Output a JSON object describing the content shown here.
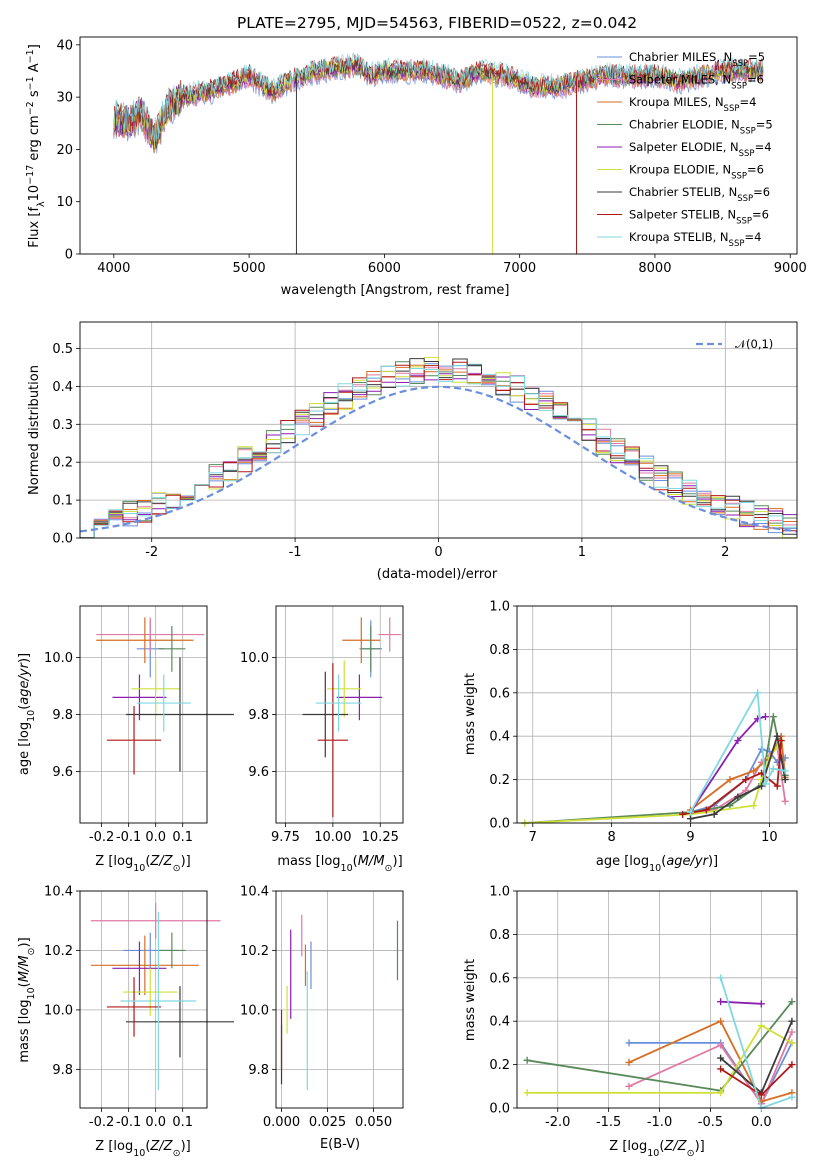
{
  "figure": {
    "title": "PLATE=2795, MJD=54563, FIBERID=0522, z=0.042"
  },
  "series": [
    {
      "key": "chab_miles",
      "label": "Chabrier MILES, N",
      "sub": "SSP",
      "suffix": "=5",
      "color": "#6a8fdc"
    },
    {
      "key": "salp_miles",
      "label": "Salpeter MILES, N",
      "sub": "SSP",
      "suffix": "=6",
      "color": "#e07aa4"
    },
    {
      "key": "krou_miles",
      "label": "Kroupa MILES, N",
      "sub": "SSP",
      "suffix": "=4",
      "color": "#d66e25"
    },
    {
      "key": "chab_elodie",
      "label": "Chabrier ELODIE, N",
      "sub": "SSP",
      "suffix": "=5",
      "color": "#5a8a5a"
    },
    {
      "key": "salp_elodie",
      "label": "Salpeter ELODIE, N",
      "sub": "SSP",
      "suffix": "=4",
      "color": "#8a1fb0"
    },
    {
      "key": "krou_elodie",
      "label": "Kroupa ELODIE, N",
      "sub": "SSP",
      "suffix": "=6",
      "color": "#cfe03a"
    },
    {
      "key": "chab_stelib",
      "label": "Chabrier STELIB, N",
      "sub": "SSP",
      "suffix": "=6",
      "color": "#3a3a3a"
    },
    {
      "key": "salp_stelib",
      "label": "Salpeter STELIB, N",
      "sub": "SSP",
      "suffix": "=6",
      "color": "#b01818"
    },
    {
      "key": "krou_stelib",
      "label": "Kroupa STELIB, N",
      "sub": "SSP",
      "suffix": "=4",
      "color": "#80d8e0"
    }
  ],
  "chart_data": [
    {
      "id": "spectrum",
      "type": "line",
      "xlabel": "wavelength [Angstrom, rest frame]",
      "ylabel": "Flux [f_λ10^−17 erg cm^−2 s^−1 A^−1]",
      "xlim": [
        3750,
        9050
      ],
      "ylim": [
        0,
        41.5
      ],
      "xticks": [
        4000,
        5000,
        6000,
        7000,
        8000,
        9000
      ],
      "yticks": [
        0,
        10,
        20,
        30,
        40
      ],
      "continuum": [
        [
          4000,
          26
        ],
        [
          4100,
          25
        ],
        [
          4200,
          27
        ],
        [
          4300,
          22
        ],
        [
          4400,
          28
        ],
        [
          4500,
          30
        ],
        [
          4700,
          31
        ],
        [
          4900,
          33
        ],
        [
          5000,
          34
        ],
        [
          5170,
          31
        ],
        [
          5300,
          33
        ],
        [
          5500,
          35
        ],
        [
          5800,
          36
        ],
        [
          5900,
          34
        ],
        [
          6000,
          35
        ],
        [
          6300,
          35
        ],
        [
          6563,
          33
        ],
        [
          6700,
          35
        ],
        [
          6900,
          34
        ],
        [
          7100,
          32
        ],
        [
          7300,
          32
        ],
        [
          7600,
          34
        ],
        [
          8000,
          34
        ],
        [
          8200,
          33
        ],
        [
          8500,
          35
        ],
        [
          8800,
          35
        ]
      ],
      "spikes": [
        {
          "series": "chab_stelib",
          "x": 5350,
          "y": 0
        },
        {
          "series": "krou_elodie",
          "x": 6800,
          "y": 0
        },
        {
          "series": "salp_stelib",
          "x": 7420,
          "y": 0
        }
      ],
      "legend": "top-right",
      "grid": false
    },
    {
      "id": "residuals",
      "type": "histogram",
      "xlabel": "(data-model)/error",
      "ylabel": "Normed distribution",
      "xlim": [
        -2.5,
        2.5
      ],
      "ylim": [
        0,
        0.57
      ],
      "xticks": [
        -2,
        -1,
        0,
        1,
        2
      ],
      "yticks": [
        0.0,
        0.1,
        0.2,
        0.3,
        0.4,
        0.5
      ],
      "bin_width": 0.1,
      "reference_label": "𝒩(0,1)",
      "reference_color": "#6a8fdc",
      "legend": "top-right",
      "grid": true
    },
    {
      "id": "age_vs_Z",
      "type": "errorbar",
      "xlabel": "Z [log10(Z/Z⊙)]",
      "ylabel": "age  [log10(age/yr)]",
      "xlim": [
        -0.28,
        0.19
      ],
      "ylim": [
        9.42,
        10.18
      ],
      "xticks": [
        -0.2,
        -0.1,
        0.0,
        0.1
      ],
      "yticks": [
        9.6,
        9.8,
        10.0
      ],
      "points": [
        {
          "series": "chab_miles",
          "x": -0.02,
          "y": 10.03,
          "xerr": 0.05,
          "yerr": 0.1
        },
        {
          "series": "salp_miles",
          "x": -0.02,
          "y": 10.08,
          "xerr": 0.2,
          "yerr": 0.06
        },
        {
          "series": "krou_miles",
          "x": -0.04,
          "y": 10.06,
          "xerr": 0.18,
          "yerr": 0.08
        },
        {
          "series": "chab_elodie",
          "x": 0.06,
          "y": 10.03,
          "xerr": 0.05,
          "yerr": 0.08
        },
        {
          "series": "salp_elodie",
          "x": -0.06,
          "y": 9.86,
          "xerr": 0.1,
          "yerr": 0.08
        },
        {
          "series": "krou_elodie",
          "x": 0.0,
          "y": 9.89,
          "xerr": 0.09,
          "yerr": 0.1
        },
        {
          "series": "chab_stelib",
          "x": 0.09,
          "y": 9.8,
          "xerr": 0.2,
          "yerr": 0.2
        },
        {
          "series": "salp_stelib",
          "x": -0.08,
          "y": 9.71,
          "xerr": 0.1,
          "yerr": 0.12
        },
        {
          "series": "krou_stelib",
          "x": 0.03,
          "y": 9.84,
          "xerr": 0.1,
          "yerr": 0.1
        }
      ]
    },
    {
      "id": "age_vs_mass",
      "type": "errorbar",
      "xlabel": "mass [log10(M/M⊙)]",
      "ylabel": "",
      "xlim": [
        9.7,
        10.37
      ],
      "ylim": [
        9.42,
        10.18
      ],
      "xticks": [
        9.75,
        10.0,
        10.25
      ],
      "yticks": [
        9.6,
        9.8,
        10.0
      ],
      "points": [
        {
          "series": "chab_miles",
          "x": 10.2,
          "y": 10.03,
          "xerr": 0.06,
          "yerr": 0.1
        },
        {
          "series": "salp_miles",
          "x": 10.3,
          "y": 10.08,
          "xerr": 0.06,
          "yerr": 0.06
        },
        {
          "series": "krou_miles",
          "x": 10.15,
          "y": 10.06,
          "xerr": 0.1,
          "yerr": 0.08
        },
        {
          "series": "chab_elodie",
          "x": 10.2,
          "y": 10.03,
          "xerr": 0.05,
          "yerr": 0.08
        },
        {
          "series": "salp_elodie",
          "x": 10.14,
          "y": 9.86,
          "xerr": 0.12,
          "yerr": 0.08
        },
        {
          "series": "krou_elodie",
          "x": 10.06,
          "y": 9.89,
          "xerr": 0.09,
          "yerr": 0.1
        },
        {
          "series": "chab_stelib",
          "x": 9.96,
          "y": 9.8,
          "xerr": 0.12,
          "yerr": 0.15
        },
        {
          "series": "salp_stelib",
          "x": 10.0,
          "y": 9.71,
          "xerr": 0.08,
          "yerr": 0.27
        },
        {
          "series": "krou_stelib",
          "x": 10.03,
          "y": 9.84,
          "xerr": 0.12,
          "yerr": 0.1
        }
      ]
    },
    {
      "id": "mass_weight_vs_age",
      "type": "line",
      "xlabel": "age  [log10(age/yr)]",
      "ylabel": "mass weight",
      "xlim": [
        6.8,
        10.35
      ],
      "ylim": [
        0,
        1
      ],
      "xticks": [
        7,
        8,
        9,
        10
      ],
      "yticks": [
        0.0,
        0.2,
        0.4,
        0.6,
        0.8,
        1.0
      ],
      "series": [
        {
          "series": "chab_miles",
          "x": [
            9.0,
            9.3,
            9.7,
            9.9,
            10.0,
            10.1,
            10.2
          ],
          "y": [
            0.05,
            0.08,
            0.2,
            0.34,
            0.33,
            0.28,
            0.3
          ]
        },
        {
          "series": "salp_miles",
          "x": [
            9.0,
            9.3,
            9.7,
            9.9,
            10.1,
            10.2
          ],
          "y": [
            0.05,
            0.06,
            0.15,
            0.28,
            0.35,
            0.1
          ]
        },
        {
          "series": "krou_miles",
          "x": [
            9.0,
            9.5,
            9.8,
            10.0,
            10.15,
            10.2
          ],
          "y": [
            0.06,
            0.2,
            0.24,
            0.3,
            0.4,
            0.21
          ]
        },
        {
          "series": "chab_elodie",
          "x": [
            6.9,
            9.0,
            9.5,
            9.9,
            10.05,
            10.2
          ],
          "y": [
            0.0,
            0.05,
            0.08,
            0.18,
            0.49,
            0.22
          ]
        },
        {
          "series": "salp_elodie",
          "x": [
            9.0,
            9.6,
            9.85,
            9.95
          ],
          "y": [
            0.05,
            0.38,
            0.48,
            0.49
          ]
        },
        {
          "series": "krou_elodie",
          "x": [
            6.9,
            9.0,
            9.8,
            9.9,
            10.0,
            10.1
          ],
          "y": [
            0.0,
            0.04,
            0.08,
            0.2,
            0.3,
            0.35
          ]
        },
        {
          "series": "chab_stelib",
          "x": [
            9.0,
            9.3,
            9.6,
            9.9,
            10.1,
            10.2
          ],
          "y": [
            0.02,
            0.04,
            0.12,
            0.17,
            0.4,
            0.2
          ]
        },
        {
          "series": "salp_stelib",
          "x": [
            8.9,
            9.2,
            9.7,
            9.9,
            10.1,
            10.15
          ],
          "y": [
            0.04,
            0.06,
            0.2,
            0.23,
            0.17,
            0.38
          ]
        },
        {
          "series": "krou_stelib",
          "x": [
            9.0,
            9.85,
            9.95,
            10.05,
            10.2
          ],
          "y": [
            0.05,
            0.6,
            0.18,
            0.25,
            0.24
          ]
        }
      ]
    },
    {
      "id": "mass_vs_Z",
      "type": "errorbar",
      "xlabel": "Z [log10(Z/Z⊙)]",
      "ylabel": "mass [log10(M/M⊙)]",
      "xlim": [
        -0.28,
        0.19
      ],
      "ylim": [
        9.67,
        10.4
      ],
      "xticks": [
        -0.2,
        -0.1,
        0.0,
        0.1
      ],
      "yticks": [
        9.8,
        10.0,
        10.2,
        10.4
      ],
      "points": [
        {
          "series": "chab_miles",
          "x": -0.02,
          "y": 10.2,
          "xerr": 0.1,
          "yerr": 0.06
        },
        {
          "series": "salp_miles",
          "x": 0.0,
          "y": 10.3,
          "xerr": 0.24,
          "yerr": 0.06
        },
        {
          "series": "krou_miles",
          "x": -0.04,
          "y": 10.15,
          "xerr": 0.2,
          "yerr": 0.1
        },
        {
          "series": "chab_elodie",
          "x": 0.06,
          "y": 10.2,
          "xerr": 0.05,
          "yerr": 0.06
        },
        {
          "series": "salp_elodie",
          "x": -0.06,
          "y": 10.14,
          "xerr": 0.1,
          "yerr": 0.09
        },
        {
          "series": "krou_elodie",
          "x": -0.02,
          "y": 10.06,
          "xerr": 0.1,
          "yerr": 0.08
        },
        {
          "series": "chab_stelib",
          "x": 0.09,
          "y": 9.96,
          "xerr": 0.2,
          "yerr": 0.12
        },
        {
          "series": "salp_stelib",
          "x": -0.08,
          "y": 10.01,
          "xerr": 0.1,
          "yerr": 0.1
        },
        {
          "series": "krou_stelib",
          "x": 0.01,
          "y": 10.03,
          "xerr": 0.14,
          "yerr": 0.3
        }
      ]
    },
    {
      "id": "mass_vs_EBV",
      "type": "errorbar",
      "xlabel": "E(B-V)",
      "ylabel": "",
      "xlim": [
        -0.003,
        0.066
      ],
      "ylim": [
        9.67,
        10.4
      ],
      "xticks": [
        0.0,
        0.025,
        0.05
      ],
      "yticks": [
        9.8,
        10.0,
        10.2,
        10.4
      ],
      "points": [
        {
          "series": "chab_miles",
          "x": 0.016,
          "y": 10.15,
          "xerr": 0,
          "yerr": 0.08
        },
        {
          "series": "salp_miles",
          "x": 0.011,
          "y": 10.25,
          "xerr": 0,
          "yerr": 0.07
        },
        {
          "series": "krou_miles",
          "x": 0.013,
          "y": 10.15,
          "xerr": 0,
          "yerr": 0.07
        },
        {
          "series": "chab_elodie",
          "x": 0.063,
          "y": 10.2,
          "xerr": 0,
          "yerr": 0.1
        },
        {
          "series": "salp_elodie",
          "x": 0.005,
          "y": 10.12,
          "xerr": 0,
          "yerr": 0.15
        },
        {
          "series": "krou_elodie",
          "x": 0.003,
          "y": 10.0,
          "xerr": 0,
          "yerr": 0.08
        },
        {
          "series": "chab_stelib",
          "x": 0.0,
          "y": 9.85,
          "xerr": 0,
          "yerr": 0.1
        },
        {
          "series": "salp_stelib",
          "x": 0.0,
          "y": 9.9,
          "xerr": 0,
          "yerr": 0.1
        },
        {
          "series": "krou_stelib",
          "x": 0.014,
          "y": 9.93,
          "xerr": 0,
          "yerr": 0.2
        }
      ]
    },
    {
      "id": "mass_weight_vs_Z",
      "type": "line",
      "xlabel": "Z [log10(Z/Z⊙)]",
      "ylabel": "mass weight",
      "xlim": [
        -2.4,
        0.35
      ],
      "ylim": [
        0,
        1
      ],
      "xticks": [
        -2.0,
        -1.5,
        -1.0,
        -0.5,
        0.0
      ],
      "yticks": [
        0.0,
        0.2,
        0.4,
        0.6,
        0.8,
        1.0
      ],
      "series": [
        {
          "series": "chab_miles",
          "x": [
            -1.3,
            -0.4,
            0.0,
            0.3
          ],
          "y": [
            0.3,
            0.3,
            0.02,
            0.3
          ]
        },
        {
          "series": "salp_miles",
          "x": [
            -1.3,
            -0.4,
            0.0,
            0.3
          ],
          "y": [
            0.1,
            0.29,
            0.02,
            0.35
          ]
        },
        {
          "series": "krou_miles",
          "x": [
            -1.3,
            -0.4,
            0.0,
            0.3
          ],
          "y": [
            0.21,
            0.4,
            0.03,
            0.07
          ]
        },
        {
          "series": "chab_elodie",
          "x": [
            -2.3,
            -0.4,
            0.3
          ],
          "y": [
            0.22,
            0.08,
            0.49
          ]
        },
        {
          "series": "salp_elodie",
          "x": [
            -0.4,
            0.0
          ],
          "y": [
            0.49,
            0.48
          ]
        },
        {
          "series": "krou_elodie",
          "x": [
            -2.3,
            -0.4,
            0.0,
            0.3
          ],
          "y": [
            0.07,
            0.07,
            0.38,
            0.3
          ]
        },
        {
          "series": "chab_stelib",
          "x": [
            -0.4,
            0.0,
            0.3
          ],
          "y": [
            0.23,
            0.07,
            0.4
          ]
        },
        {
          "series": "salp_stelib",
          "x": [
            -0.4,
            0.0,
            0.3
          ],
          "y": [
            0.18,
            0.06,
            0.2
          ]
        },
        {
          "series": "krou_stelib",
          "x": [
            -0.4,
            0.0,
            0.3
          ],
          "y": [
            0.6,
            0.0,
            0.05
          ]
        }
      ]
    }
  ]
}
